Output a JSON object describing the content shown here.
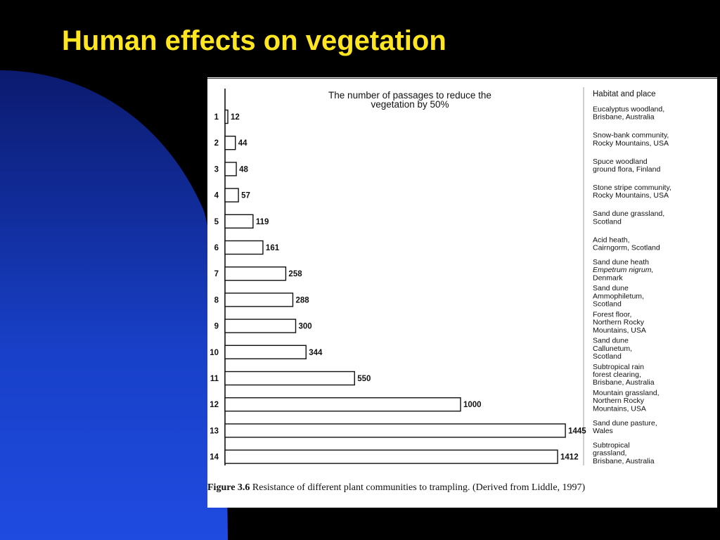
{
  "slide": {
    "title": "Human effects on vegetation",
    "colors": {
      "title": "#FFE620",
      "background": "#000000",
      "gradient_top": "#0B1A6E",
      "gradient_bottom": "#1F4BE0",
      "bar_stroke": "#111111"
    }
  },
  "figure": {
    "caption_label": "Figure 3.6",
    "caption_text": "Resistance of different plant communities to trampling. (Derived from Liddle, 1997)"
  },
  "chart_data": {
    "type": "bar",
    "orientation": "horizontal",
    "title": "The number of passages to reduce the vegetation by 50%",
    "legend_header": "Habitat and place",
    "categories": [
      "1",
      "2",
      "3",
      "4",
      "5",
      "6",
      "7",
      "8",
      "9",
      "10",
      "11",
      "12",
      "13",
      "14"
    ],
    "values": [
      12,
      44,
      48,
      57,
      119,
      161,
      258,
      288,
      300,
      344,
      550,
      1000,
      1445,
      1412
    ],
    "habitats": [
      [
        "Eucalyptus woodland,",
        "Brisbane, Australia"
      ],
      [
        "Snow-bank community,",
        "Rocky Mountains, USA"
      ],
      [
        "Spuce woodland",
        "ground flora, Finland"
      ],
      [
        "Stone stripe community,",
        "Rocky Mountains, USA"
      ],
      [
        "Sand dune grassland,",
        "Scotland"
      ],
      [
        "Acid heath,",
        "Cairngorm, Scotland"
      ],
      [
        "Sand dune heath",
        "Empetrum nigrum,",
        "Denmark"
      ],
      [
        "Sand dune",
        "Ammophiletum,",
        "Scotland"
      ],
      [
        "Forest floor,",
        "Northern Rocky",
        "Mountains, USA"
      ],
      [
        "Sand dune",
        "Callunetum,",
        "Scotland"
      ],
      [
        "Subtropical rain",
        "forest clearing,",
        "Brisbane, Australia"
      ],
      [
        "Mountain grassland,",
        "Northern Rocky",
        "Mountains, USA"
      ],
      [
        "Sand dune pasture,",
        "Wales"
      ],
      [
        "Subtropical",
        "grassland,",
        "Brisbane, Australia"
      ]
    ]
  }
}
